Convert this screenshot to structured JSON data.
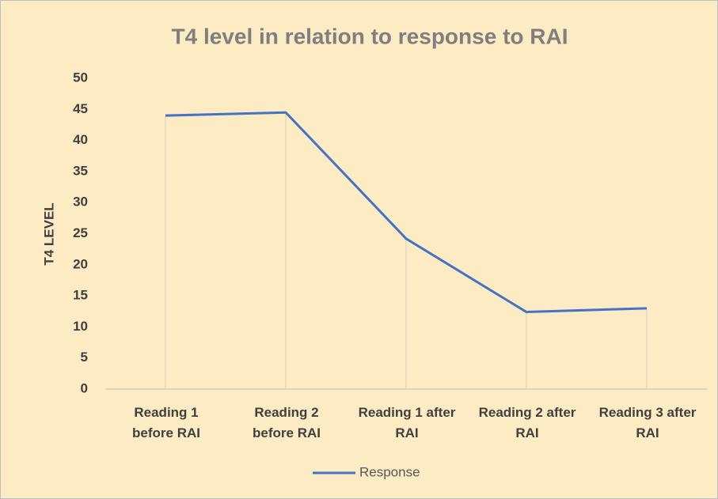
{
  "chart_data": {
    "type": "line",
    "title": "T4 level in relation to response to RAI",
    "y_label": "T4 LEVEL",
    "categories": [
      "Reading 1 before RAI",
      "Reading 2 before RAI",
      "Reading 1 after RAI",
      "Reading 2 after RAI",
      "Reading 3 after RAI"
    ],
    "series": [
      {
        "name": "Response",
        "color": "#4472c4",
        "values": [
          44,
          44.5,
          24.2,
          12.4,
          13.0
        ]
      }
    ],
    "ylim": [
      0,
      50
    ],
    "yticks": [
      0,
      5,
      10,
      15,
      20,
      25,
      30,
      35,
      40,
      45,
      50
    ],
    "drop_lines": true,
    "legend": "bottom"
  }
}
